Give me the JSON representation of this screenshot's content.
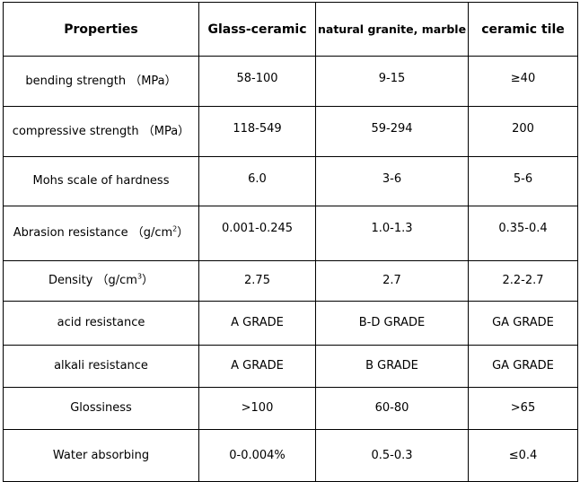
{
  "table": {
    "headers": [
      "Properties",
      "Glass-ceramic",
      "natural granite, marble",
      "ceramic tile"
    ],
    "rows": [
      {
        "property": "bending strength （MPa）",
        "unit_sup": "",
        "unit_close": "",
        "values": [
          "58-100",
          "9-15",
          "≥40"
        ]
      },
      {
        "property": "compressive strength （MPa）",
        "unit_sup": "",
        "unit_close": "",
        "values": [
          "118-549",
          "59-294",
          "200"
        ]
      },
      {
        "property": "Mohs scale of  hardness",
        "unit_sup": "",
        "unit_close": "",
        "values": [
          "6.0",
          "3-6",
          "5-6"
        ]
      },
      {
        "property": "Abrasion resistance （g/cm",
        "unit_sup": "2",
        "unit_close": "）",
        "values": [
          "0.001-0.245",
          "1.0-1.3",
          "0.35-0.4"
        ]
      },
      {
        "property": "Density （g/cm",
        "unit_sup": "3",
        "unit_close": "）",
        "values": [
          "2.75",
          "2.7",
          "2.2-2.7"
        ]
      },
      {
        "property": "acid resistance",
        "unit_sup": "",
        "unit_close": "",
        "values": [
          "A GRADE",
          "B-D GRADE",
          "GA GRADE"
        ]
      },
      {
        "property": "alkali resistance",
        "unit_sup": "",
        "unit_close": "",
        "values": [
          "A GRADE",
          "B GRADE",
          "GA GRADE"
        ]
      },
      {
        "property": "Glossiness",
        "unit_sup": "",
        "unit_close": "",
        "values": [
          ">100",
          "60-80",
          ">65"
        ]
      },
      {
        "property": "Water absorbing",
        "unit_sup": "",
        "unit_close": "",
        "values": [
          "0-0.004%",
          "0.5-0.3",
          "≤0.4"
        ]
      }
    ]
  }
}
